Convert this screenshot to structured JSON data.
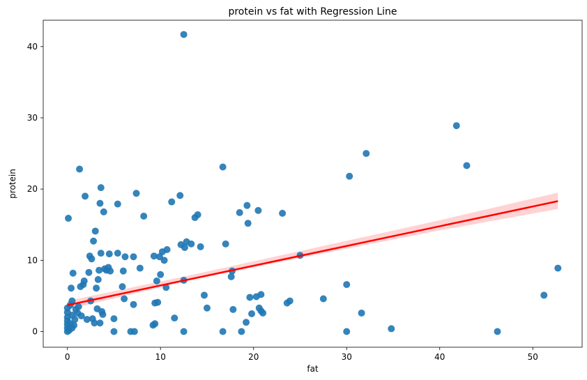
{
  "chart_data": {
    "type": "scatter",
    "title": "protein vs fat with Regression Line",
    "xlabel": "fat",
    "ylabel": "protein",
    "xlim": [
      -2.6,
      55.3
    ],
    "ylim": [
      -2.2,
      43.7
    ],
    "xticks": [
      0,
      10,
      20,
      30,
      40,
      50
    ],
    "yticks": [
      0,
      10,
      20,
      30,
      40
    ],
    "grid": false,
    "colors": {
      "points": "#1f77b4",
      "line": "#ff0000",
      "band": "#ffb6b6"
    },
    "regression": {
      "x": [
        0,
        52.7
      ],
      "y": [
        3.7,
        18.3
      ],
      "ci_x": [
        0,
        13.2,
        26.4,
        39.6,
        52.7
      ],
      "ci_lower": [
        3.1,
        7.2,
        10.7,
        14.1,
        17.2
      ],
      "ci_upper": [
        4.3,
        7.9,
        11.7,
        15.5,
        19.5
      ]
    },
    "points": [
      {
        "x": 0,
        "y": 0
      },
      {
        "x": 0,
        "y": 0.5
      },
      {
        "x": 0,
        "y": 1
      },
      {
        "x": 0,
        "y": 1.5
      },
      {
        "x": 0,
        "y": 2
      },
      {
        "x": 0,
        "y": 2.7
      },
      {
        "x": 0,
        "y": 3.3
      },
      {
        "x": 0.1,
        "y": 15.9
      },
      {
        "x": 0.2,
        "y": 0.2
      },
      {
        "x": 0.3,
        "y": 1.1
      },
      {
        "x": 0.3,
        "y": 3.7
      },
      {
        "x": 0.4,
        "y": 6.1
      },
      {
        "x": 0.5,
        "y": 0.5
      },
      {
        "x": 0.5,
        "y": 2.3
      },
      {
        "x": 0.5,
        "y": 4.3
      },
      {
        "x": 0.6,
        "y": 8.2
      },
      {
        "x": 0.7,
        "y": 0.9
      },
      {
        "x": 0.8,
        "y": 1.7
      },
      {
        "x": 0.9,
        "y": 3.1
      },
      {
        "x": 1.1,
        "y": 2.6
      },
      {
        "x": 1.2,
        "y": 3.5
      },
      {
        "x": 1.3,
        "y": 22.8
      },
      {
        "x": 1.4,
        "y": 6.3
      },
      {
        "x": 1.5,
        "y": 2.2
      },
      {
        "x": 1.7,
        "y": 6.6
      },
      {
        "x": 1.8,
        "y": 7.1
      },
      {
        "x": 1.9,
        "y": 19
      },
      {
        "x": 2.1,
        "y": 1.7
      },
      {
        "x": 2.3,
        "y": 8.3
      },
      {
        "x": 2.4,
        "y": 10.6
      },
      {
        "x": 2.5,
        "y": 4.3
      },
      {
        "x": 2.6,
        "y": 10.2
      },
      {
        "x": 2.7,
        "y": 1.8
      },
      {
        "x": 2.8,
        "y": 12.7
      },
      {
        "x": 2.9,
        "y": 1.2
      },
      {
        "x": 3.0,
        "y": 14.1
      },
      {
        "x": 3.1,
        "y": 6.1
      },
      {
        "x": 3.2,
        "y": 3.2
      },
      {
        "x": 3.3,
        "y": 7.3
      },
      {
        "x": 3.4,
        "y": 8.6
      },
      {
        "x": 3.5,
        "y": 18
      },
      {
        "x": 3.5,
        "y": 1.2
      },
      {
        "x": 3.6,
        "y": 20.2
      },
      {
        "x": 3.6,
        "y": 11
      },
      {
        "x": 3.7,
        "y": 2.8
      },
      {
        "x": 3.8,
        "y": 2.4
      },
      {
        "x": 3.9,
        "y": 16.8
      },
      {
        "x": 4.0,
        "y": 8.8
      },
      {
        "x": 4.2,
        "y": 8.6
      },
      {
        "x": 4.4,
        "y": 9
      },
      {
        "x": 4.5,
        "y": 10.9
      },
      {
        "x": 4.6,
        "y": 8.5
      },
      {
        "x": 5.0,
        "y": 1.8
      },
      {
        "x": 5.0,
        "y": 0
      },
      {
        "x": 5.4,
        "y": 11
      },
      {
        "x": 5.4,
        "y": 17.9
      },
      {
        "x": 5.9,
        "y": 6.3
      },
      {
        "x": 6.0,
        "y": 8.5
      },
      {
        "x": 6.1,
        "y": 4.6
      },
      {
        "x": 6.2,
        "y": 10.5
      },
      {
        "x": 6.8,
        "y": 0
      },
      {
        "x": 7.1,
        "y": 3.8
      },
      {
        "x": 7.1,
        "y": 10.5
      },
      {
        "x": 7.2,
        "y": 0
      },
      {
        "x": 7.4,
        "y": 19.4
      },
      {
        "x": 7.8,
        "y": 8.9
      },
      {
        "x": 8.2,
        "y": 16.2
      },
      {
        "x": 9.2,
        "y": 0.9
      },
      {
        "x": 9.3,
        "y": 10.6
      },
      {
        "x": 9.4,
        "y": 1.1
      },
      {
        "x": 9.4,
        "y": 4
      },
      {
        "x": 9.6,
        "y": 7.1
      },
      {
        "x": 9.7,
        "y": 4.1
      },
      {
        "x": 9.9,
        "y": 10.5
      },
      {
        "x": 10.0,
        "y": 8
      },
      {
        "x": 10.2,
        "y": 11.2
      },
      {
        "x": 10.4,
        "y": 10
      },
      {
        "x": 10.6,
        "y": 6.2
      },
      {
        "x": 10.7,
        "y": 11.5
      },
      {
        "x": 11.2,
        "y": 18.2
      },
      {
        "x": 11.5,
        "y": 1.9
      },
      {
        "x": 12.1,
        "y": 19.1
      },
      {
        "x": 12.2,
        "y": 12.2
      },
      {
        "x": 12.5,
        "y": 41.7
      },
      {
        "x": 12.5,
        "y": 7.2
      },
      {
        "x": 12.5,
        "y": 0
      },
      {
        "x": 12.6,
        "y": 11.8
      },
      {
        "x": 12.8,
        "y": 12.6
      },
      {
        "x": 13.3,
        "y": 12.3
      },
      {
        "x": 13.7,
        "y": 16
      },
      {
        "x": 14.0,
        "y": 16.4
      },
      {
        "x": 14.3,
        "y": 11.9
      },
      {
        "x": 14.7,
        "y": 5.1
      },
      {
        "x": 15.0,
        "y": 3.3
      },
      {
        "x": 16.7,
        "y": 23.1
      },
      {
        "x": 16.7,
        "y": 0
      },
      {
        "x": 17.0,
        "y": 12.3
      },
      {
        "x": 17.6,
        "y": 7.7
      },
      {
        "x": 17.7,
        "y": 8.5
      },
      {
        "x": 17.8,
        "y": 3.1
      },
      {
        "x": 18.5,
        "y": 16.7
      },
      {
        "x": 18.7,
        "y": 0
      },
      {
        "x": 19.2,
        "y": 1.3
      },
      {
        "x": 19.3,
        "y": 17.7
      },
      {
        "x": 19.4,
        "y": 15.2
      },
      {
        "x": 19.6,
        "y": 4.8
      },
      {
        "x": 19.8,
        "y": 2.5
      },
      {
        "x": 20.3,
        "y": 4.9
      },
      {
        "x": 20.5,
        "y": 17
      },
      {
        "x": 20.6,
        "y": 3.3
      },
      {
        "x": 20.8,
        "y": 5.2
      },
      {
        "x": 20.8,
        "y": 2.9
      },
      {
        "x": 21.0,
        "y": 2.6
      },
      {
        "x": 23.1,
        "y": 16.6
      },
      {
        "x": 23.6,
        "y": 4
      },
      {
        "x": 23.9,
        "y": 4.3
      },
      {
        "x": 25.0,
        "y": 10.7
      },
      {
        "x": 27.5,
        "y": 4.6
      },
      {
        "x": 30.0,
        "y": 6.6
      },
      {
        "x": 30.0,
        "y": 0
      },
      {
        "x": 30.3,
        "y": 21.8
      },
      {
        "x": 31.6,
        "y": 2.6
      },
      {
        "x": 32.1,
        "y": 25
      },
      {
        "x": 34.8,
        "y": 0.4
      },
      {
        "x": 41.8,
        "y": 28.9
      },
      {
        "x": 42.9,
        "y": 23.3
      },
      {
        "x": 46.2,
        "y": 0
      },
      {
        "x": 51.2,
        "y": 5.1
      },
      {
        "x": 52.7,
        "y": 8.9
      }
    ]
  }
}
